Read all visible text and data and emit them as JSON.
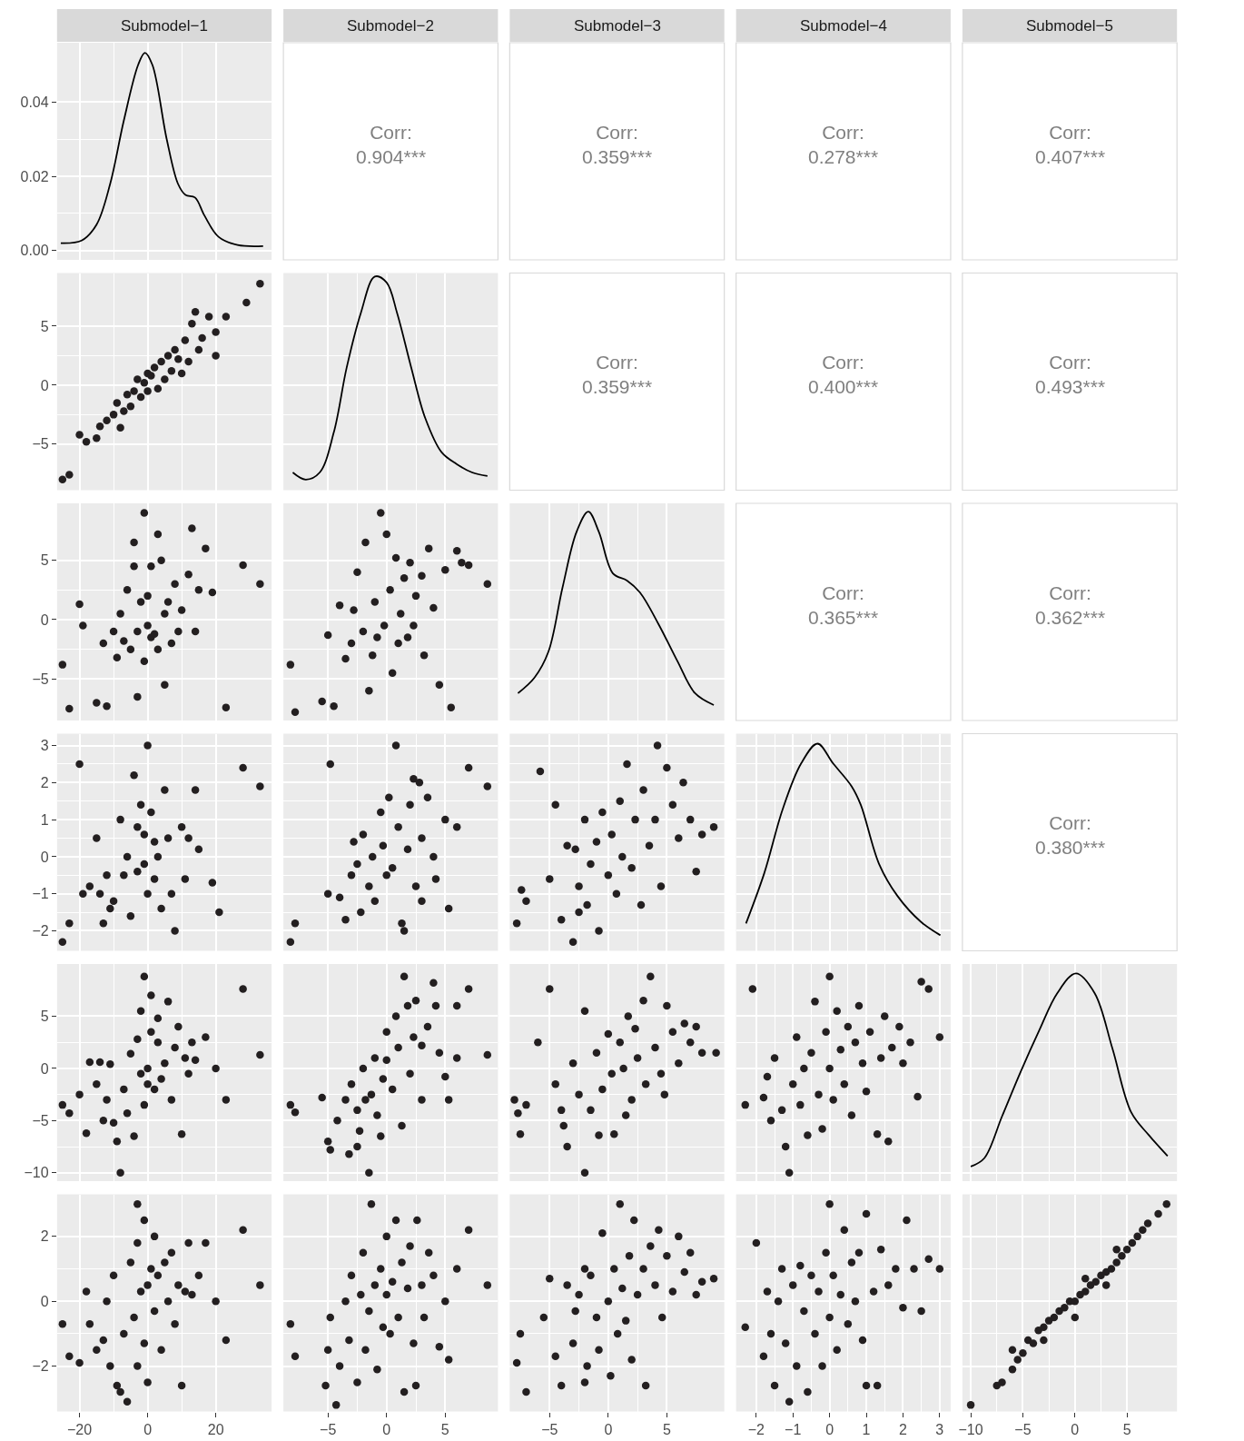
{
  "chart_data": [
    {
      "type": "line",
      "title": "Submodel−1",
      "x": [
        -25.5,
        -19.4,
        -15,
        -11,
        -7,
        -2.8,
        -0.8,
        1.4,
        5.6,
        8.9,
        11.1,
        13.9,
        16.7,
        20.8,
        26.4,
        33.9
      ],
      "values": [
        0.002,
        0.0027,
        0.007,
        0.018,
        0.035,
        0.05,
        0.0533,
        0.05,
        0.03,
        0.018,
        0.015,
        0.0143,
        0.0094,
        0.0037,
        0.0015,
        0.0012
      ],
      "color": "#000000",
      "xlim": [
        -26.6,
        36.4
      ],
      "ylim": [
        -0.0025,
        0.056
      ],
      "xticks": [
        -20,
        0,
        20
      ],
      "yticks": [
        {
          "value": 0,
          "label": "0.00"
        },
        {
          "value": 0.02,
          "label": "0.02"
        },
        {
          "value": 0.04,
          "label": "0.04"
        }
      ],
      "grid": true,
      "tick_labels": "y"
    },
    {
      "type": "other",
      "title": "Submodel−2",
      "annotations": [
        "Corr:",
        "0.904***"
      ]
    },
    {
      "type": "other",
      "title": "Submodel−3",
      "annotations": [
        "Corr:",
        "0.359***"
      ]
    },
    {
      "type": "other",
      "title": "Submodel−4",
      "annotations": [
        "Corr:",
        "0.278***"
      ]
    },
    {
      "type": "other",
      "title": "Submodel−5",
      "annotations": [
        "Corr:",
        "0.407***"
      ]
    },
    {
      "type": "scatter",
      "x": [
        -25,
        -23,
        -20,
        -18,
        -15,
        -14,
        -12,
        -10,
        -9,
        -8,
        -7,
        -6,
        -5,
        -4,
        -3,
        -2,
        -1,
        0,
        0,
        1,
        2,
        3,
        4,
        5,
        6,
        7,
        8,
        9,
        10,
        11,
        12,
        13,
        14,
        15,
        16,
        18,
        20,
        20,
        23,
        29,
        33
      ],
      "values": [
        -8.0,
        -7.6,
        -4.2,
        -4.8,
        -4.5,
        -3.5,
        -3.0,
        -2.5,
        -1.5,
        -3.6,
        -2.2,
        -0.8,
        -1.8,
        -0.5,
        0.5,
        -1.0,
        0.2,
        1.0,
        -0.5,
        0.8,
        1.5,
        -0.3,
        2.0,
        0.5,
        2.5,
        1.2,
        3.0,
        2.2,
        1.0,
        3.8,
        2.0,
        5.2,
        6.2,
        3.0,
        4.0,
        5.8,
        2.5,
        4.5,
        5.8,
        7.0,
        8.6
      ],
      "color": "#231f20",
      "marker": "circle",
      "xlim": [
        -26.6,
        36.4
      ],
      "ylim": [
        -8.9,
        9.5
      ],
      "xticks": [
        -20,
        0,
        20
      ],
      "yticks": [
        {
          "value": -5,
          "label": "−5"
        },
        0,
        5
      ],
      "grid": true,
      "tick_labels": "y"
    },
    {
      "type": "line",
      "x": [
        -8.0,
        -6.9,
        -5.7,
        -4.5,
        -3.4,
        -2.2,
        -1.0,
        0,
        0.9,
        2.1,
        3.3,
        4.7,
        6.0,
        7.3,
        8.6
      ],
      "values": [
        -7.4,
        -8.0,
        -7.4,
        -4.0,
        1.5,
        6.1,
        9.2,
        8.7,
        6.1,
        1.5,
        -2.8,
        -5.7,
        -6.7,
        -7.4,
        -7.7
      ],
      "color": "#000000",
      "xlim": [
        -8.8,
        9.5
      ],
      "ylim": [
        -8.9,
        9.5
      ],
      "xticks": [
        -5,
        0,
        5
      ],
      "yticks": [
        -5,
        0,
        5
      ],
      "grid": true,
      "tick_labels": false
    },
    {
      "type": "other",
      "annotations": [
        "Corr:",
        "0.359***"
      ]
    },
    {
      "type": "other",
      "annotations": [
        "Corr:",
        "0.400***"
      ]
    },
    {
      "type": "other",
      "annotations": [
        "Corr:",
        "0.493***"
      ]
    },
    {
      "type": "scatter",
      "x": [
        -25,
        -23,
        -20,
        -19,
        -15,
        -12,
        -13,
        -10,
        -9,
        -8,
        -7,
        -6,
        -5,
        -4,
        -4,
        -3,
        -3,
        -2,
        -1,
        -1,
        0,
        0,
        1,
        1,
        2,
        3,
        3,
        4,
        5,
        5,
        6,
        7,
        8,
        9,
        10,
        12,
        13,
        14,
        15,
        17,
        19,
        23,
        28,
        33
      ],
      "values": [
        -3.8,
        -7.5,
        1.3,
        -0.5,
        -7.0,
        -7.3,
        -2.0,
        -1.0,
        -3.2,
        0.5,
        -1.8,
        2.5,
        -2.5,
        4.5,
        6.5,
        -1.0,
        -6.5,
        1.5,
        -3.5,
        9.0,
        -0.5,
        2.0,
        4.5,
        -1.5,
        -1.2,
        7.2,
        -2.5,
        5.0,
        0.5,
        -5.5,
        1.5,
        -2.0,
        3.0,
        -1.0,
        0.8,
        3.8,
        7.7,
        -1.0,
        2.5,
        6.0,
        2.3,
        -7.4,
        4.6,
        3.0
      ],
      "color": "#231f20",
      "marker": "circle",
      "xlim": [
        -26.6,
        36.4
      ],
      "ylim": [
        -8.5,
        9.8
      ],
      "xticks": [
        -20,
        0,
        20
      ],
      "yticks": [
        {
          "value": -5,
          "label": "−5"
        },
        0,
        5
      ],
      "grid": true,
      "tick_labels": "y"
    },
    {
      "type": "scatter",
      "x": [
        -8.2,
        -7.8,
        -5.5,
        -5,
        -4.5,
        -4,
        -3.5,
        -3,
        -2.8,
        -2.5,
        -2,
        -1.8,
        -1.5,
        -1.2,
        -1,
        -0.8,
        -0.5,
        -0.2,
        0,
        0.3,
        0.5,
        0.8,
        1,
        1.2,
        1.5,
        1.8,
        2,
        2.3,
        2.5,
        3,
        3.2,
        3.6,
        4,
        4.5,
        5,
        5.5,
        6,
        6.4,
        7,
        8.6
      ],
      "values": [
        -3.8,
        -7.8,
        -6.9,
        -1.3,
        -7.3,
        1.2,
        -3.3,
        -2.0,
        0.8,
        4.0,
        -1.0,
        6.5,
        -6.0,
        -3.0,
        1.5,
        -1.5,
        9.0,
        -0.5,
        7.2,
        2.5,
        -4.5,
        5.2,
        -2.0,
        0.5,
        3.5,
        -1.5,
        4.8,
        -0.5,
        2.0,
        3.7,
        -3.0,
        6.0,
        1.0,
        -5.5,
        4.2,
        -7.4,
        5.8,
        4.8,
        4.6,
        3.0
      ],
      "color": "#231f20",
      "marker": "circle",
      "xlim": [
        -8.8,
        9.5
      ],
      "ylim": [
        -8.5,
        9.8
      ],
      "xticks": [
        -5,
        0,
        5
      ],
      "yticks": [
        -5,
        0,
        5
      ],
      "grid": true,
      "tick_labels": false
    },
    {
      "type": "line",
      "x": [
        -7.7,
        -6.3,
        -5.1,
        -3.9,
        -2.7,
        -1.7,
        -0.8,
        0.4,
        1.6,
        2.7,
        4.3,
        5.9,
        7.4,
        9.0
      ],
      "values": [
        -6.2,
        -4.9,
        -2.7,
        2.7,
        7.4,
        9.1,
        7.4,
        3.9,
        3.3,
        2.3,
        -0.4,
        -3.5,
        -6.2,
        -7.2
      ],
      "color": "#000000",
      "xlim": [
        -8.4,
        9.9
      ],
      "ylim": [
        -8.5,
        9.8
      ],
      "xticks": [
        -5,
        0,
        5
      ],
      "yticks": [
        -5,
        0,
        5
      ],
      "grid": true,
      "tick_labels": false
    },
    {
      "type": "other",
      "annotations": [
        "Corr:",
        "0.365***"
      ]
    },
    {
      "type": "other",
      "annotations": [
        "Corr:",
        "0.362***"
      ]
    },
    {
      "type": "scatter",
      "x": [
        -25,
        -23,
        -20,
        -19,
        -17,
        -15,
        -14,
        -13,
        -12,
        -11,
        -10,
        -8,
        -7,
        -6,
        -5,
        -4,
        -3,
        -3,
        -2,
        -1,
        -1,
        0,
        0,
        1,
        2,
        2,
        3,
        4,
        5,
        6,
        7,
        8,
        10,
        11,
        12,
        14,
        15,
        19,
        21,
        28,
        33
      ],
      "values": [
        -2.3,
        -1.8,
        2.5,
        -1.0,
        -0.8,
        0.5,
        -1.0,
        -1.8,
        -0.5,
        -1.4,
        -1.2,
        1.0,
        -0.5,
        0.0,
        -1.6,
        2.2,
        0.8,
        -0.4,
        1.4,
        0.6,
        -0.2,
        3.0,
        -1.0,
        1.2,
        0.4,
        -0.6,
        0.0,
        -1.4,
        1.8,
        0.5,
        -1.0,
        -2.0,
        0.8,
        -0.6,
        0.5,
        1.8,
        0.2,
        -0.7,
        -1.5,
        2.4,
        1.9
      ],
      "color": "#231f20",
      "marker": "circle",
      "xlim": [
        -26.6,
        36.4
      ],
      "ylim": [
        -2.54,
        3.32
      ],
      "xticks": [
        -20,
        0,
        20
      ],
      "yticks": [
        {
          "value": -2,
          "label": "−2"
        },
        {
          "value": -1,
          "label": "−1"
        },
        0,
        1,
        2,
        3
      ],
      "grid": true,
      "tick_labels": "y"
    },
    {
      "type": "scatter",
      "x": [
        -8.2,
        -7.8,
        -5,
        -4.8,
        -4,
        -3.5,
        -3,
        -2.5,
        -2.2,
        -2,
        -1.5,
        -1.2,
        -1,
        -0.5,
        -0.3,
        0,
        0.2,
        0.5,
        0.8,
        1,
        1.3,
        1.5,
        1.8,
        2,
        2.3,
        2.5,
        3,
        3,
        3.5,
        4,
        4.2,
        5,
        5.3,
        6,
        7,
        8.6,
        2.8,
        -2.8
      ],
      "values": [
        -2.3,
        -1.8,
        -1.0,
        2.5,
        -1.1,
        -1.7,
        -0.5,
        -0.2,
        -1.5,
        0.6,
        -0.8,
        0.0,
        -1.2,
        1.2,
        0.3,
        -0.5,
        1.6,
        -0.3,
        3.0,
        0.8,
        -1.8,
        -2.0,
        0.2,
        1.4,
        2.1,
        -0.8,
        0.5,
        -1.2,
        1.6,
        0.0,
        -0.6,
        1.0,
        -1.4,
        0.8,
        2.4,
        1.9,
        2.0,
        0.4
      ],
      "color": "#231f20",
      "marker": "circle",
      "xlim": [
        -8.8,
        9.5
      ],
      "ylim": [
        -2.54,
        3.32
      ],
      "xticks": [
        -5,
        0,
        5
      ],
      "yticks": [
        -2,
        -1,
        0,
        1,
        2,
        3
      ],
      "grid": true,
      "tick_labels": false
    },
    {
      "type": "scatter",
      "x": [
        -7.8,
        -7.4,
        -7,
        -5.8,
        -5,
        -4.5,
        -4,
        -3.5,
        -3,
        -2.8,
        -2.5,
        -2,
        -1.8,
        -1.5,
        -1,
        -0.8,
        -0.5,
        0,
        0.3,
        0.7,
        1,
        1.2,
        1.6,
        2,
        2.3,
        2.8,
        3,
        3.5,
        4,
        4.2,
        4.5,
        5,
        5.5,
        6,
        6.4,
        7,
        7.5,
        8,
        9,
        -2.5
      ],
      "values": [
        -1.8,
        -0.9,
        -1.2,
        2.3,
        -0.6,
        1.4,
        -1.7,
        0.3,
        -2.3,
        0.2,
        -0.8,
        1.0,
        -1.3,
        -0.2,
        0.4,
        -2.0,
        1.2,
        -0.5,
        0.6,
        -1.0,
        1.5,
        0.0,
        2.5,
        -0.3,
        1.0,
        -1.3,
        1.8,
        0.3,
        1.0,
        3.0,
        -0.8,
        2.4,
        1.4,
        0.5,
        2.0,
        1.0,
        -0.4,
        0.6,
        0.8,
        -1.5
      ],
      "color": "#231f20",
      "marker": "circle",
      "xlim": [
        -8.4,
        9.9
      ],
      "ylim": [
        -2.54,
        3.32
      ],
      "xticks": [
        -5,
        0,
        5
      ],
      "yticks": [
        -2,
        -1,
        0,
        1,
        2,
        3
      ],
      "grid": true,
      "tick_labels": false
    },
    {
      "type": "line",
      "x": [
        -2.28,
        -1.78,
        -1.28,
        -0.78,
        -0.33,
        0.1,
        0.6,
        0.85,
        1.35,
        1.85,
        2.48,
        3.02
      ],
      "values": [
        -1.8,
        -0.44,
        1.28,
        2.51,
        3.05,
        2.51,
        1.9,
        1.4,
        -0.2,
        -1.06,
        -1.75,
        -2.12
      ],
      "color": "#000000",
      "xlim": [
        -2.55,
        3.3
      ],
      "ylim": [
        -2.54,
        3.32
      ],
      "xticks": [
        -2,
        -1,
        0,
        1,
        2,
        3
      ],
      "yticks": [
        -2,
        -1,
        0,
        1,
        2,
        3
      ],
      "grid": true,
      "tick_labels": false
    },
    {
      "type": "other",
      "annotations": [
        "Corr:",
        "0.380***"
      ]
    },
    {
      "type": "scatter",
      "x": [
        -25,
        -23,
        -20,
        -18,
        -17,
        -15,
        -14,
        -13,
        -12,
        -11,
        -10,
        -9,
        -8,
        -7,
        -6,
        -5,
        -4,
        -3,
        -2,
        -2,
        -1,
        -1,
        0,
        0,
        1,
        1,
        2,
        3,
        3,
        4,
        5,
        6,
        7,
        8,
        9,
        10,
        11,
        12,
        13,
        14,
        17,
        20,
        23,
        28,
        33
      ],
      "values": [
        -3.5,
        -4.3,
        -2.5,
        -6.2,
        0.6,
        -1.5,
        0.6,
        -5.0,
        -3.0,
        0.4,
        -5.2,
        -7.0,
        -10.0,
        -2.0,
        -4.3,
        1.4,
        -6.5,
        2.8,
        -0.5,
        5.5,
        -3.5,
        8.8,
        0.0,
        -1.5,
        3.5,
        7.0,
        -2.0,
        2.5,
        4.8,
        -1.0,
        0.5,
        6.4,
        -3.0,
        2.0,
        4.0,
        -6.3,
        1.0,
        -0.5,
        2.5,
        0.8,
        3.0,
        0.0,
        -3.0,
        7.6,
        1.3
      ],
      "color": "#231f20",
      "marker": "circle",
      "xlim": [
        -26.6,
        36.4
      ],
      "ylim": [
        -10.8,
        10
      ],
      "xticks": [
        -20,
        0,
        20
      ],
      "yticks": [
        {
          "value": -10,
          "label": "−10"
        },
        {
          "value": -5,
          "label": "−5"
        },
        0,
        5
      ],
      "grid": true,
      "tick_labels": "y"
    },
    {
      "type": "scatter",
      "x": [
        -8.2,
        -7.8,
        -5.5,
        -5,
        -4.8,
        -4.2,
        -3.5,
        -3.2,
        -3,
        -2.5,
        -2.3,
        -2,
        -1.8,
        -1.5,
        -1.3,
        -1,
        -0.8,
        -0.5,
        -0.3,
        0,
        0,
        0.5,
        0.8,
        1,
        1.3,
        1.5,
        1.8,
        2,
        2.3,
        2.5,
        3,
        3,
        3.5,
        4,
        4.2,
        4.5,
        5,
        5.3,
        6,
        6,
        7,
        8.6,
        -2.5
      ],
      "values": [
        -3.5,
        -4.2,
        -2.8,
        -7.0,
        -7.8,
        -5.0,
        -3.0,
        -8.2,
        -1.5,
        -4.0,
        -6.0,
        0.0,
        -3.0,
        -10.0,
        -2.5,
        1.0,
        -4.5,
        -6.5,
        -1.0,
        0.8,
        3.5,
        -2.0,
        5.0,
        2.0,
        -5.5,
        8.8,
        6.0,
        -0.5,
        3.0,
        6.5,
        2.2,
        -3.0,
        4.0,
        8.2,
        6.0,
        1.5,
        -0.8,
        -3.0,
        1.0,
        6.0,
        7.6,
        1.3,
        -7.5
      ],
      "color": "#231f20",
      "marker": "circle",
      "xlim": [
        -8.8,
        9.5
      ],
      "ylim": [
        -10.8,
        10
      ],
      "xticks": [
        -5,
        0,
        5
      ],
      "yticks": [
        -10,
        -5,
        0,
        5
      ],
      "grid": true,
      "tick_labels": false
    },
    {
      "type": "scatter",
      "x": [
        -8,
        -7.7,
        -7.5,
        -7,
        -6,
        -5,
        -4.5,
        -4,
        -3.8,
        -3.5,
        -3,
        -2.5,
        -2,
        -2,
        -1.5,
        -1,
        -0.8,
        -0.5,
        0,
        0.3,
        0.5,
        1,
        1.3,
        1.7,
        2,
        2.3,
        2.5,
        3,
        3.2,
        3.6,
        4,
        4.5,
        5,
        5.5,
        6,
        6.5,
        7,
        7.5,
        8,
        9.2,
        4.8,
        1.5
      ],
      "values": [
        -3.0,
        -4.3,
        -6.3,
        -3.5,
        2.5,
        7.6,
        -1.5,
        -4.0,
        -5.5,
        -7.5,
        0.5,
        -2.5,
        -10.0,
        5.5,
        -4.0,
        1.5,
        -6.4,
        -2.0,
        3.3,
        -0.5,
        -6.3,
        2.5,
        0.0,
        5.0,
        -3.0,
        3.8,
        1.0,
        6.5,
        -1.5,
        8.8,
        2.0,
        -0.5,
        6.0,
        3.5,
        0.5,
        4.3,
        2.5,
        4.0,
        1.5,
        1.5,
        -2.5,
        -4.5
      ],
      "color": "#231f20",
      "marker": "circle",
      "xlim": [
        -8.4,
        9.9
      ],
      "ylim": [
        -10.8,
        10
      ],
      "xticks": [
        -5,
        0,
        5
      ],
      "yticks": [
        -10,
        -5,
        0,
        5
      ],
      "grid": true,
      "tick_labels": false
    },
    {
      "type": "scatter",
      "x": [
        -2.3,
        -2.1,
        -1.8,
        -1.7,
        -1.6,
        -1.5,
        -1.3,
        -1.2,
        -1.1,
        -1.0,
        -0.9,
        -0.8,
        -0.7,
        -0.6,
        -0.5,
        -0.4,
        -0.3,
        -0.2,
        -0.1,
        0,
        0,
        0.1,
        0.2,
        0.3,
        0.4,
        0.5,
        0.6,
        0.7,
        0.8,
        0.9,
        1.0,
        1.1,
        1.3,
        1.4,
        1.5,
        1.6,
        1.7,
        1.9,
        2.0,
        2.2,
        2.4,
        2.5,
        2.7,
        3.0
      ],
      "values": [
        -3.5,
        7.6,
        -2.8,
        -0.8,
        -5.0,
        1.0,
        -4.0,
        -7.5,
        -10.0,
        -1.5,
        3.0,
        -3.5,
        0.0,
        -6.4,
        1.5,
        6.4,
        -2.5,
        -5.8,
        3.5,
        0.0,
        8.8,
        -3.0,
        5.5,
        1.8,
        -1.5,
        4.0,
        -4.5,
        2.5,
        6.0,
        0.5,
        -2.2,
        3.5,
        -6.3,
        1.0,
        5.0,
        -7.0,
        2.0,
        4.0,
        0.5,
        2.5,
        -2.7,
        8.3,
        7.6,
        3.0
      ],
      "color": "#231f20",
      "marker": "circle",
      "xlim": [
        -2.55,
        3.3
      ],
      "ylim": [
        -10.8,
        10
      ],
      "xticks": [
        -2,
        -1,
        0,
        1,
        2,
        3
      ],
      "yticks": [
        -10,
        -5,
        0,
        5
      ],
      "grid": true,
      "tick_labels": false
    },
    {
      "type": "line",
      "x": [
        -10.0,
        -8.7,
        -7.0,
        -5.2,
        -3.4,
        -1.7,
        0.1,
        1.9,
        3.6,
        5.4,
        7.1,
        8.9
      ],
      "values": [
        -9.4,
        -8.6,
        -4.6,
        -0.3,
        3.7,
        7.2,
        9.1,
        7.2,
        1.9,
        -4.2,
        -6.4,
        -8.4
      ],
      "color": "#000000",
      "xlim": [
        -10.8,
        9.8
      ],
      "ylim": [
        -10.8,
        10
      ],
      "xticks": [
        -10,
        -5,
        0,
        5
      ],
      "yticks": [
        -10,
        -5,
        0,
        5
      ],
      "grid": true,
      "tick_labels": false
    },
    {
      "type": "scatter",
      "x": [
        -25,
        -23,
        -20,
        -18,
        -17,
        -15,
        -13,
        -12,
        -11,
        -10,
        -9,
        -8,
        -7,
        -6,
        -5,
        -4,
        -3,
        -3,
        -2,
        -1,
        -1,
        0,
        0,
        1,
        2,
        2,
        3,
        4,
        5,
        6,
        7,
        8,
        9,
        10,
        11,
        12,
        13,
        15,
        17,
        20,
        23,
        28,
        33,
        -3
      ],
      "values": [
        -0.7,
        -1.7,
        -1.9,
        0.3,
        -0.7,
        -1.5,
        -1.2,
        0.0,
        -2.0,
        0.8,
        -2.6,
        -2.8,
        -1.0,
        -3.1,
        1.2,
        -0.5,
        -2.0,
        1.8,
        0.3,
        2.5,
        -1.3,
        0.5,
        -2.5,
        1.0,
        -0.3,
        2.0,
        0.8,
        -1.5,
        1.2,
        0.0,
        1.5,
        -0.7,
        0.5,
        -2.6,
        0.3,
        1.8,
        0.2,
        0.8,
        1.8,
        0.0,
        -1.2,
        2.2,
        0.5,
        3.0
      ],
      "color": "#231f20",
      "marker": "circle",
      "xlim": [
        -26.6,
        36.4
      ],
      "ylim": [
        -3.4,
        3.3
      ],
      "xticks": [
        {
          "value": -20,
          "label": "−20"
        },
        0,
        20
      ],
      "yticks": [
        {
          "value": -2,
          "label": "−2"
        },
        0,
        2
      ],
      "grid": true
    },
    {
      "type": "scatter",
      "x": [
        -8.2,
        -7.8,
        -5.2,
        -5,
        -4.8,
        -4.3,
        -4,
        -3.5,
        -3.2,
        -3,
        -2.5,
        -2.2,
        -2,
        -1.8,
        -1.5,
        -1.3,
        -1,
        -0.8,
        -0.5,
        -0.3,
        0,
        0,
        0.3,
        0.5,
        0.8,
        1,
        1.3,
        1.5,
        1.8,
        2,
        2.3,
        2.6,
        3,
        3.2,
        3.6,
        4,
        4.5,
        5,
        5.3,
        6,
        7,
        8.6,
        2.5
      ],
      "values": [
        -0.7,
        -1.7,
        -2.6,
        -1.5,
        -0.5,
        -3.2,
        -2.0,
        0.0,
        -1.2,
        0.8,
        -2.5,
        0.2,
        1.5,
        -1.5,
        -0.3,
        3.0,
        0.5,
        -2.1,
        1.0,
        -0.8,
        0.2,
        2.0,
        -1.0,
        0.6,
        2.5,
        -0.5,
        1.2,
        -2.8,
        0.4,
        1.7,
        -1.3,
        2.5,
        0.5,
        -0.5,
        1.5,
        0.8,
        -1.4,
        0.0,
        -1.8,
        1.0,
        2.2,
        0.5,
        -2.6
      ],
      "color": "#231f20",
      "marker": "circle",
      "xlim": [
        -8.8,
        9.5
      ],
      "ylim": [
        -3.4,
        3.3
      ],
      "xticks": [
        {
          "value": -5,
          "label": "−5"
        },
        0,
        5
      ],
      "yticks": [
        -2,
        0,
        2
      ],
      "grid": true,
      "tick_labels": "x"
    },
    {
      "type": "scatter",
      "x": [
        -7.8,
        -7.5,
        -7,
        -5.5,
        -5,
        -4.5,
        -4,
        -3.5,
        -3,
        -2.8,
        -2.5,
        -2,
        -1.8,
        -1.5,
        -1,
        -0.8,
        -0.5,
        0,
        0.2,
        0.5,
        0.8,
        1,
        1.2,
        1.5,
        1.8,
        2,
        2.2,
        2.5,
        3,
        3.2,
        3.6,
        4,
        4.3,
        4.6,
        5,
        5.5,
        6,
        6.5,
        7,
        7.5,
        8,
        9,
        -2
      ],
      "values": [
        -1.9,
        -1.0,
        -2.8,
        -0.5,
        0.7,
        -1.7,
        -2.6,
        0.5,
        -1.3,
        -0.3,
        0.2,
        1.0,
        -2.0,
        0.8,
        -0.5,
        -1.5,
        2.1,
        0.0,
        -2.3,
        1.0,
        -1.0,
        3.0,
        0.4,
        -0.6,
        1.4,
        -1.8,
        2.5,
        0.2,
        1.0,
        -2.6,
        1.7,
        0.5,
        2.2,
        -0.5,
        1.4,
        0.3,
        2.0,
        0.9,
        1.5,
        0.2,
        0.6,
        0.7,
        -2.5
      ],
      "color": "#231f20",
      "marker": "circle",
      "xlim": [
        -8.4,
        9.9
      ],
      "ylim": [
        -3.4,
        3.3
      ],
      "xticks": [
        {
          "value": -5,
          "label": "−5"
        },
        0,
        5
      ],
      "yticks": [
        -2,
        0,
        2
      ],
      "grid": true,
      "tick_labels": "x"
    },
    {
      "type": "scatter",
      "x": [
        -2.3,
        -2.0,
        -1.8,
        -1.7,
        -1.6,
        -1.5,
        -1.4,
        -1.3,
        -1.2,
        -1.1,
        -1.0,
        -0.9,
        -0.8,
        -0.7,
        -0.6,
        -0.5,
        -0.4,
        -0.3,
        -0.2,
        -0.1,
        0,
        0,
        0.1,
        0.2,
        0.3,
        0.4,
        0.5,
        0.6,
        0.7,
        0.8,
        0.9,
        1.0,
        1.0,
        1.2,
        1.3,
        1.4,
        1.6,
        1.8,
        2.0,
        2.1,
        2.3,
        2.5,
        2.7,
        3.0
      ],
      "values": [
        -0.8,
        1.8,
        -1.7,
        0.3,
        -1.0,
        -2.6,
        0.0,
        1.0,
        -1.3,
        -3.1,
        0.5,
        -2.0,
        1.1,
        -0.3,
        -2.8,
        0.8,
        -1.0,
        0.3,
        -2.0,
        1.5,
        3.0,
        -0.5,
        0.8,
        -1.5,
        0.2,
        2.2,
        -0.7,
        1.2,
        0.0,
        1.5,
        -1.2,
        2.7,
        -2.6,
        0.3,
        -2.6,
        1.6,
        0.5,
        1.0,
        -0.2,
        2.5,
        1.0,
        -0.3,
        1.3,
        1.0
      ],
      "color": "#231f20",
      "marker": "circle",
      "xlim": [
        -2.55,
        3.3
      ],
      "ylim": [
        -3.4,
        3.3
      ],
      "xticks": [
        {
          "value": -2,
          "label": "−2"
        },
        {
          "value": -1,
          "label": "−1"
        },
        0,
        1,
        2,
        3
      ],
      "yticks": [
        -2,
        0,
        2
      ],
      "grid": true,
      "tick_labels": "x"
    },
    {
      "type": "scatter",
      "x": [
        -10,
        -7.5,
        -7,
        -6,
        -5.5,
        -5,
        -4.5,
        -4,
        -3.5,
        -3,
        -2.5,
        -2,
        -1.5,
        -1,
        -0.5,
        0,
        0.5,
        1,
        1.5,
        2,
        2.5,
        3,
        3.5,
        4,
        4.5,
        5,
        5.5,
        6,
        6.5,
        7,
        8,
        8.8,
        -3,
        1,
        3,
        -6,
        0,
        4
      ],
      "values": [
        -3.2,
        -2.6,
        -2.5,
        -2.1,
        -1.8,
        -1.6,
        -1.2,
        -1.3,
        -0.9,
        -0.8,
        -0.6,
        -0.5,
        -0.3,
        -0.2,
        0.0,
        0.0,
        0.2,
        0.3,
        0.5,
        0.6,
        0.8,
        0.9,
        1.0,
        1.2,
        1.4,
        1.6,
        1.8,
        2.0,
        2.2,
        2.4,
        2.7,
        3.0,
        -1.2,
        0.7,
        0.5,
        -1.5,
        -0.5,
        1.6
      ],
      "color": "#231f20",
      "marker": "circle",
      "xlim": [
        -10.8,
        9.8
      ],
      "ylim": [
        -3.4,
        3.3
      ],
      "xticks": [
        {
          "value": -10,
          "label": "−10"
        },
        {
          "value": -5,
          "label": "−5"
        },
        0,
        5
      ],
      "yticks": [
        -2,
        0,
        2
      ],
      "grid": true,
      "tick_labels": "x"
    }
  ]
}
